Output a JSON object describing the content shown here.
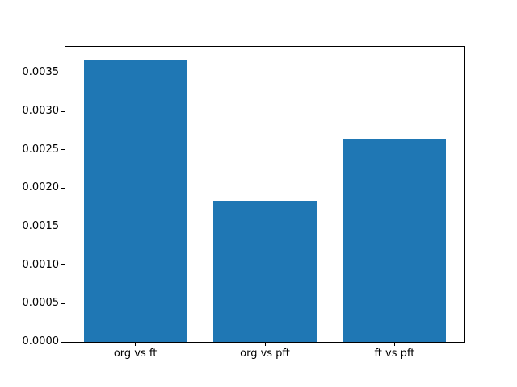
{
  "chart_data": {
    "type": "bar",
    "title": "",
    "xlabel": "",
    "ylabel": "",
    "categories": [
      "org vs ft",
      "org vs pft",
      "ft vs pft"
    ],
    "values": [
      0.00367,
      0.00184,
      0.00263
    ],
    "x_positions": [
      0,
      1,
      2
    ],
    "bar_width": 0.8,
    "xlim": [
      -0.54,
      2.54
    ],
    "ylim": [
      0,
      0.00384
    ],
    "ytick_values": [
      0.0,
      0.0005,
      0.001,
      0.0015,
      0.002,
      0.0025,
      0.003,
      0.0035
    ],
    "ytick_labels": [
      "0.0000",
      "0.0005",
      "0.0010",
      "0.0015",
      "0.0020",
      "0.0025",
      "0.0030",
      "0.0035"
    ],
    "grid": false,
    "legend": null,
    "colors": {
      "bar": "#1f77b4",
      "spine": "#000000",
      "background": "#ffffff",
      "text": "#000000"
    }
  }
}
